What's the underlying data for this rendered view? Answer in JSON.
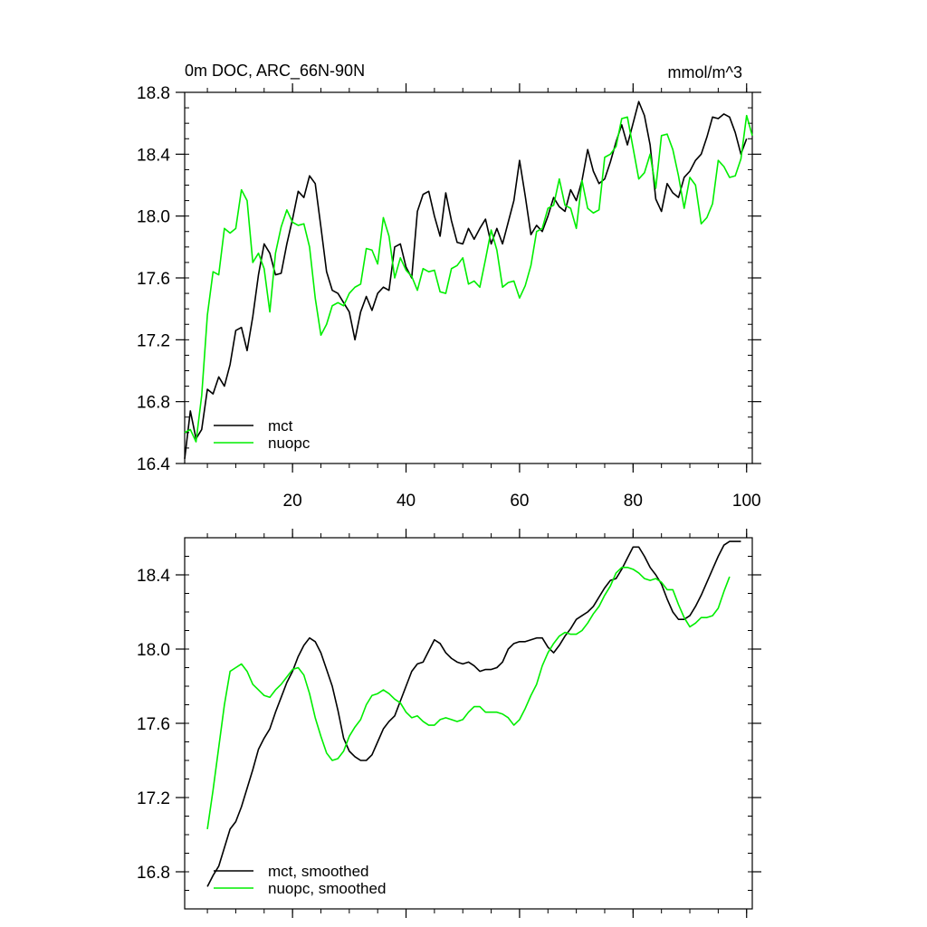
{
  "chart_data": [
    {
      "type": "line",
      "title": "0m DOC, ARC_66N-90N",
      "units": "mmol/m^3",
      "xlim": [
        1,
        101
      ],
      "ylim": [
        16.4,
        18.8
      ],
      "xticks": [
        20,
        40,
        60,
        80,
        100
      ],
      "yticks": [
        16.4,
        16.8,
        17.2,
        17.6,
        18.0,
        18.4,
        18.8
      ],
      "ytick_labels": [
        "16.4",
        "16.8",
        "17.2",
        "17.6",
        "18.0",
        "18.4",
        "18.8"
      ],
      "xtick_labels": [
        "20",
        "40",
        "60",
        "80",
        "100"
      ],
      "legend_placement": "bottom-left",
      "series": [
        {
          "name": "mct",
          "color": "#000000",
          "x_start": 1,
          "values": [
            16.43,
            16.74,
            16.56,
            16.62,
            16.88,
            16.85,
            16.96,
            16.9,
            17.04,
            17.26,
            17.28,
            17.13,
            17.35,
            17.62,
            17.82,
            17.76,
            17.62,
            17.63,
            17.82,
            17.98,
            18.16,
            18.12,
            18.26,
            18.21,
            17.93,
            17.64,
            17.52,
            17.5,
            17.44,
            17.38,
            17.2,
            17.38,
            17.48,
            17.39,
            17.5,
            17.54,
            17.52,
            17.8,
            17.82,
            17.67,
            17.6,
            18.03,
            18.14,
            18.16,
            18.0,
            17.87,
            18.15,
            17.97,
            17.83,
            17.82,
            17.92,
            17.85,
            17.92,
            17.98,
            17.82,
            17.92,
            17.82,
            17.96,
            18.1,
            18.36,
            18.13,
            17.88,
            17.94,
            17.9,
            18.0,
            18.12,
            18.06,
            18.03,
            18.17,
            18.1,
            18.23,
            18.43,
            18.29,
            18.21,
            18.24,
            18.35,
            18.48,
            18.59,
            18.46,
            18.6,
            18.74,
            18.65,
            18.46,
            18.11,
            18.03,
            18.21,
            18.15,
            18.12,
            18.25,
            18.29,
            18.36,
            18.4,
            18.51,
            18.64,
            18.63,
            18.66,
            18.64,
            18.54,
            18.4,
            18.5
          ]
        },
        {
          "name": "nuopc",
          "color": "#00ee00",
          "x_start": 1,
          "values": [
            16.6,
            16.62,
            16.54,
            16.84,
            17.36,
            17.64,
            17.62,
            17.92,
            17.89,
            17.92,
            18.17,
            18.1,
            17.7,
            17.76,
            17.66,
            17.38,
            17.76,
            17.93,
            18.04,
            17.96,
            17.94,
            17.95,
            17.8,
            17.47,
            17.23,
            17.3,
            17.42,
            17.44,
            17.42,
            17.5,
            17.54,
            17.56,
            17.79,
            17.78,
            17.69,
            17.99,
            17.87,
            17.6,
            17.73,
            17.65,
            17.61,
            17.52,
            17.66,
            17.64,
            17.65,
            17.51,
            17.5,
            17.66,
            17.68,
            17.73,
            17.56,
            17.58,
            17.54,
            17.72,
            17.91,
            17.78,
            17.54,
            17.57,
            17.58,
            17.47,
            17.55,
            17.68,
            17.9,
            17.92,
            18.05,
            18.07,
            18.24,
            18.07,
            18.05,
            17.92,
            18.23,
            18.05,
            18.02,
            18.04,
            18.38,
            18.4,
            18.45,
            18.63,
            18.64,
            18.44,
            18.24,
            18.28,
            18.4,
            18.18,
            18.52,
            18.53,
            18.43,
            18.26,
            18.05,
            18.25,
            18.2,
            17.95,
            17.99,
            18.08,
            18.36,
            18.32,
            18.25,
            18.26,
            18.37,
            18.65,
            18.52
          ]
        }
      ]
    },
    {
      "type": "line",
      "title": "",
      "xlim": [
        1,
        101
      ],
      "ylim": [
        16.6,
        18.6
      ],
      "xticks": [
        20,
        40,
        60,
        80,
        100
      ],
      "yticks": [
        16.8,
        17.2,
        17.6,
        18.0,
        18.4
      ],
      "ytick_labels": [
        "16.8",
        "17.2",
        "17.6",
        "18.0",
        "18.4"
      ],
      "legend_placement": "bottom-left",
      "series": [
        {
          "name": "mct, smoothed",
          "color": "#000000",
          "x_start": 5,
          "values": [
            16.72,
            16.78,
            16.83,
            16.93,
            17.03,
            17.07,
            17.15,
            17.25,
            17.35,
            17.46,
            17.52,
            17.57,
            17.66,
            17.74,
            17.82,
            17.88,
            17.96,
            18.02,
            18.06,
            18.04,
            17.98,
            17.89,
            17.8,
            17.67,
            17.52,
            17.45,
            17.42,
            17.4,
            17.4,
            17.43,
            17.5,
            17.57,
            17.61,
            17.64,
            17.72,
            17.8,
            17.88,
            17.92,
            17.93,
            17.99,
            18.05,
            18.03,
            17.98,
            17.95,
            17.93,
            17.92,
            17.93,
            17.91,
            17.88,
            17.89,
            17.89,
            17.9,
            17.93,
            18.0,
            18.03,
            18.04,
            18.04,
            18.05,
            18.06,
            18.06,
            18.01,
            17.98,
            18.02,
            18.07,
            18.11,
            18.16,
            18.18,
            18.2,
            18.23,
            18.28,
            18.33,
            18.37,
            18.38,
            18.43,
            18.49,
            18.55,
            18.55,
            18.5,
            18.44,
            18.4,
            18.35,
            18.27,
            18.2,
            18.16,
            18.16,
            18.18,
            18.23,
            18.29,
            18.36,
            18.43,
            18.5,
            18.56,
            18.58,
            18.58,
            18.58
          ]
        },
        {
          "name": "nuopc, smoothed",
          "color": "#00ee00",
          "x_start": 5,
          "values": [
            17.03,
            17.24,
            17.47,
            17.7,
            17.88,
            17.9,
            17.92,
            17.88,
            17.81,
            17.78,
            17.75,
            17.74,
            17.78,
            17.81,
            17.85,
            17.89,
            17.9,
            17.86,
            17.76,
            17.63,
            17.53,
            17.44,
            17.4,
            17.41,
            17.45,
            17.53,
            17.58,
            17.62,
            17.7,
            17.75,
            17.76,
            17.78,
            17.76,
            17.73,
            17.71,
            17.66,
            17.63,
            17.64,
            17.61,
            17.59,
            17.59,
            17.62,
            17.63,
            17.62,
            17.61,
            17.62,
            17.66,
            17.69,
            17.69,
            17.66,
            17.66,
            17.66,
            17.65,
            17.63,
            17.59,
            17.62,
            17.68,
            17.75,
            17.81,
            17.91,
            17.98,
            18.03,
            18.07,
            18.09,
            18.08,
            18.08,
            18.1,
            18.14,
            18.19,
            18.23,
            18.29,
            18.34,
            18.41,
            18.44,
            18.44,
            18.43,
            18.41,
            18.38,
            18.37,
            18.38,
            18.36,
            18.32,
            18.32,
            18.24,
            18.17,
            18.12,
            18.14,
            18.17,
            18.17,
            18.18,
            18.22,
            18.31,
            18.39
          ]
        }
      ]
    }
  ]
}
